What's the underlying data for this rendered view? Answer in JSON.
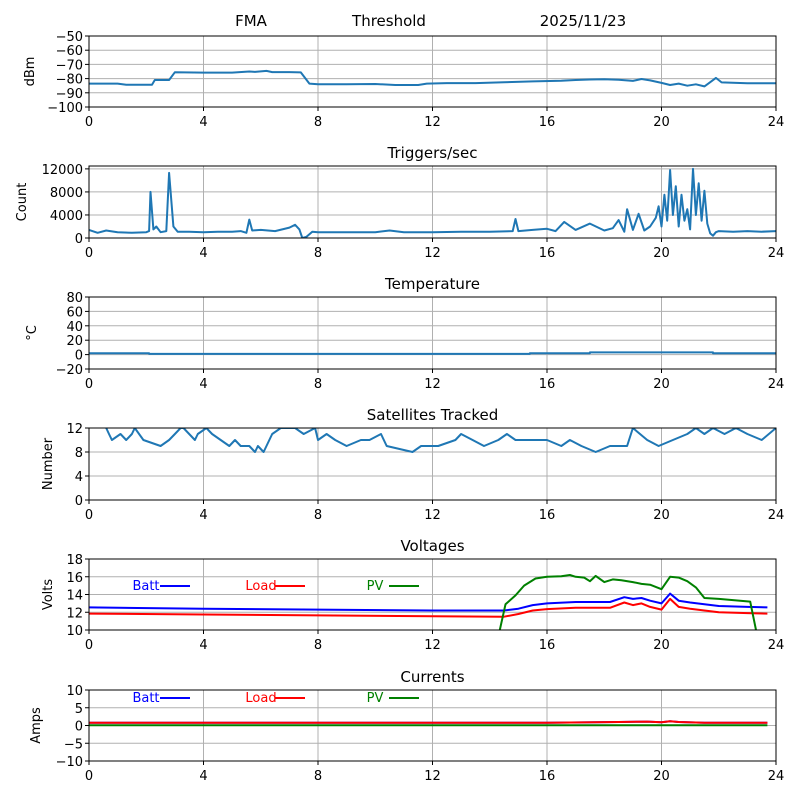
{
  "header": {
    "label_site": "FMA",
    "label_mode": "Threshold",
    "label_date": "2025/11/23"
  },
  "colors": {
    "series_default": "#1f77b4",
    "batt": "#0000ff",
    "load": "#ff0000",
    "pv": "#008000",
    "grid": "#b0b0b0"
  },
  "chart_data": [
    {
      "id": "threshold",
      "type": "line",
      "title": "",
      "xlabel": "",
      "ylabel": "dBm",
      "xlim": [
        0,
        24
      ],
      "ylim": [
        -100,
        -50
      ],
      "xticks": [
        0,
        4,
        8,
        12,
        16,
        20,
        24
      ],
      "yticks": [
        -100,
        -90,
        -80,
        -70,
        -60,
        -50
      ],
      "ytick_labels": [
        "−100",
        "−90",
        "−80",
        "−70",
        "−60",
        "−50"
      ],
      "grid": true,
      "series": [
        {
          "name": "Threshold",
          "color": "#1f77b4",
          "x": [
            0,
            1.0,
            1.3,
            2.2,
            2.3,
            2.8,
            3.0,
            4.0,
            5.0,
            5.6,
            5.8,
            6.2,
            6.4,
            7.0,
            7.4,
            7.7,
            8.0,
            9.0,
            10.0,
            10.7,
            11.5,
            11.8,
            12.5,
            13.5,
            14.5,
            15.5,
            16.5,
            17.0,
            17.5,
            18.0,
            18.5,
            19.0,
            19.3,
            19.6,
            20.0,
            20.3,
            20.6,
            20.9,
            21.2,
            21.5,
            21.7,
            21.9,
            22.1,
            23.0,
            24
          ],
          "y": [
            -83.5,
            -83.5,
            -84.3,
            -84.3,
            -81,
            -81,
            -75.5,
            -75.8,
            -75.8,
            -75,
            -75.3,
            -74.6,
            -75.4,
            -75.4,
            -75.6,
            -83.5,
            -84,
            -84,
            -83.8,
            -84.5,
            -84.5,
            -83.5,
            -83.2,
            -83.2,
            -82.6,
            -82,
            -81.5,
            -81,
            -80.6,
            -80.5,
            -80.8,
            -81.6,
            -80.3,
            -81.3,
            -83,
            -84.5,
            -83.5,
            -85,
            -84,
            -85.5,
            -82.5,
            -79.5,
            -82.7,
            -83.3,
            -83.3
          ]
        }
      ]
    },
    {
      "id": "triggers",
      "type": "line",
      "title": "Triggers/sec",
      "xlabel": "",
      "ylabel": "Count",
      "xlim": [
        0,
        24
      ],
      "ylim": [
        0,
        12500
      ],
      "xticks": [
        0,
        4,
        8,
        12,
        16,
        20,
        24
      ],
      "yticks": [
        0,
        4000,
        8000,
        12000
      ],
      "ytick_labels": [
        "0",
        "4000",
        "8000",
        "12000"
      ],
      "grid": true,
      "series": [
        {
          "name": "Triggers",
          "color": "#1f77b4",
          "x": [
            0,
            0.3,
            0.6,
            1.0,
            1.5,
            2.0,
            2.1,
            2.15,
            2.25,
            2.35,
            2.5,
            2.7,
            2.8,
            2.95,
            3.1,
            3.5,
            4.0,
            4.5,
            5.0,
            5.3,
            5.5,
            5.6,
            5.7,
            6.0,
            6.5,
            7.0,
            7.2,
            7.35,
            7.45,
            7.6,
            7.8,
            8.0,
            9.0,
            10.0,
            10.5,
            11.0,
            12.0,
            13.0,
            14.0,
            14.8,
            14.9,
            15.0,
            15.5,
            16.0,
            16.3,
            16.6,
            17.0,
            17.5,
            18.0,
            18.3,
            18.5,
            18.7,
            18.8,
            19.0,
            19.2,
            19.4,
            19.6,
            19.8,
            19.9,
            20.0,
            20.1,
            20.2,
            20.3,
            20.4,
            20.5,
            20.6,
            20.7,
            20.8,
            20.9,
            21.0,
            21.1,
            21.2,
            21.3,
            21.4,
            21.5,
            21.6,
            21.7,
            21.8,
            21.9,
            22.0,
            22.5,
            23.0,
            23.5,
            24
          ],
          "y": [
            1400,
            900,
            1300,
            1000,
            900,
            1000,
            1200,
            8000,
            1500,
            2000,
            1000,
            1200,
            11300,
            2000,
            1100,
            1100,
            1000,
            1100,
            1100,
            1200,
            900,
            3200,
            1300,
            1400,
            1200,
            1800,
            2300,
            1500,
            0,
            200,
            1100,
            1000,
            1000,
            1000,
            1300,
            1000,
            1000,
            1100,
            1100,
            1200,
            3300,
            1200,
            1400,
            1600,
            1200,
            2800,
            1400,
            2500,
            1300,
            1700,
            3100,
            1100,
            5000,
            1400,
            4200,
            1300,
            2000,
            3500,
            5500,
            2000,
            7500,
            3000,
            11800,
            4000,
            9000,
            2000,
            7500,
            3000,
            5000,
            1500,
            12000,
            4000,
            9500,
            3000,
            8200,
            2500,
            800,
            400,
            1000,
            1200,
            1100,
            1200,
            1100,
            1200
          ]
        }
      ]
    },
    {
      "id": "temperature",
      "type": "line",
      "title": "Temperature",
      "xlabel": "",
      "ylabel": "°C",
      "xlim": [
        0,
        24
      ],
      "ylim": [
        -20,
        80
      ],
      "xticks": [
        0,
        4,
        8,
        12,
        16,
        20,
        24
      ],
      "yticks": [
        -20,
        0,
        20,
        40,
        60,
        80
      ],
      "ytick_labels": [
        "−20",
        "0",
        "20",
        "40",
        "60",
        "80"
      ],
      "grid": true,
      "series": [
        {
          "name": "Temperature",
          "color": "#1f77b4",
          "x": [
            0,
            2.1,
            2.1,
            15.4,
            15.4,
            17.5,
            17.5,
            21.8,
            21.8,
            24
          ],
          "y": [
            2,
            2,
            1,
            1,
            2,
            2,
            3,
            3,
            2,
            2
          ]
        }
      ]
    },
    {
      "id": "satellites",
      "type": "line",
      "title": "Satellites Tracked",
      "xlabel": "",
      "ylabel": "Number",
      "xlim": [
        0,
        24
      ],
      "ylim": [
        0,
        12
      ],
      "xticks": [
        0,
        4,
        8,
        12,
        16,
        20,
        24
      ],
      "yticks": [
        0,
        4,
        8,
        12
      ],
      "ytick_labels": [
        "0",
        "4",
        "8",
        "12"
      ],
      "grid": true,
      "series": [
        {
          "name": "Satellites",
          "color": "#1f77b4",
          "x": [
            0.6,
            0.7,
            0.8,
            1.1,
            1.3,
            1.5,
            1.6,
            1.9,
            2.5,
            2.8,
            3.0,
            3.2,
            3.3,
            3.7,
            3.8,
            4.1,
            4.3,
            4.6,
            4.9,
            5.1,
            5.3,
            5.6,
            5.8,
            5.9,
            6.1,
            6.4,
            6.7,
            7.2,
            7.5,
            7.9,
            8.0,
            8.3,
            8.6,
            9.0,
            9.5,
            9.8,
            10.2,
            10.4,
            11.3,
            11.6,
            12.2,
            12.8,
            13.0,
            13.4,
            13.8,
            14.3,
            14.6,
            14.9,
            16.0,
            16.5,
            16.8,
            17.2,
            17.7,
            18.2,
            18.8,
            19.0,
            19.5,
            19.9,
            20.4,
            20.9,
            21.2,
            21.5,
            21.8,
            22.2,
            22.6,
            23.0,
            23.5,
            24
          ],
          "y": [
            12,
            11,
            10,
            11,
            10,
            11,
            12,
            10,
            9,
            10,
            11,
            12,
            12,
            10,
            11,
            12,
            11,
            10,
            9,
            10,
            9,
            9,
            8,
            9,
            8,
            11,
            12,
            12,
            11,
            12,
            10,
            11,
            10,
            9,
            10,
            10,
            11,
            9,
            8,
            9,
            9,
            10,
            11,
            10,
            9,
            10,
            11,
            10,
            10,
            9,
            10,
            9,
            8,
            9,
            9,
            12,
            10,
            9,
            10,
            11,
            12,
            11,
            12,
            11,
            12,
            11,
            10,
            12
          ]
        }
      ]
    },
    {
      "id": "voltages",
      "type": "line",
      "title": "Voltages",
      "xlabel": "",
      "ylabel": "Volts",
      "xlim": [
        0,
        24
      ],
      "ylim": [
        10,
        18
      ],
      "xticks": [
        0,
        4,
        8,
        12,
        16,
        20,
        24
      ],
      "yticks": [
        10,
        12,
        14,
        16,
        18
      ],
      "ytick_labels": [
        "10",
        "12",
        "14",
        "16",
        "18"
      ],
      "grid": true,
      "legend": {
        "placement": "top-left",
        "entries": [
          "Batt",
          "Load",
          "PV"
        ]
      },
      "series": [
        {
          "name": "Batt",
          "color": "#0000ff",
          "x": [
            0,
            4,
            8,
            12,
            14.5,
            15.0,
            15.5,
            16.0,
            17.0,
            18.2,
            18.7,
            19.0,
            19.3,
            19.6,
            20.0,
            20.3,
            20.6,
            21.0,
            21.5,
            22.0,
            23.0,
            23.7
          ],
          "y": [
            12.55,
            12.4,
            12.3,
            12.2,
            12.2,
            12.4,
            12.8,
            13.0,
            13.15,
            13.15,
            13.7,
            13.5,
            13.6,
            13.3,
            13.0,
            14.1,
            13.3,
            13.1,
            12.9,
            12.7,
            12.6,
            12.55
          ]
        },
        {
          "name": "Load",
          "color": "#ff0000",
          "x": [
            0,
            4,
            8,
            12,
            14.5,
            15.0,
            15.5,
            16.0,
            17.0,
            18.2,
            18.7,
            19.0,
            19.3,
            19.6,
            20.0,
            20.3,
            20.6,
            21.0,
            21.5,
            22.0,
            23.0,
            23.7
          ],
          "y": [
            11.85,
            11.75,
            11.65,
            11.55,
            11.5,
            11.8,
            12.2,
            12.35,
            12.5,
            12.5,
            13.1,
            12.8,
            13.0,
            12.6,
            12.3,
            13.5,
            12.6,
            12.4,
            12.2,
            12.0,
            11.9,
            11.85
          ]
        },
        {
          "name": "PV",
          "color": "#008000",
          "x": [
            14.35,
            14.55,
            14.9,
            15.2,
            15.6,
            16.0,
            16.5,
            16.8,
            17.0,
            17.3,
            17.5,
            17.7,
            18.0,
            18.3,
            18.6,
            19.0,
            19.3,
            19.6,
            20.0,
            20.3,
            20.6,
            20.9,
            21.2,
            21.5,
            22.0,
            23.1,
            23.3
          ],
          "y": [
            10,
            12.9,
            13.9,
            15.0,
            15.8,
            16.0,
            16.05,
            16.2,
            16.0,
            15.9,
            15.5,
            16.1,
            15.4,
            15.7,
            15.6,
            15.4,
            15.2,
            15.1,
            14.6,
            16.0,
            15.9,
            15.5,
            14.8,
            13.6,
            13.5,
            13.2,
            10
          ]
        }
      ]
    },
    {
      "id": "currents",
      "type": "line",
      "title": "Currents",
      "xlabel": "",
      "ylabel": "Amps",
      "xlim": [
        0,
        24
      ],
      "ylim": [
        -10,
        10
      ],
      "xticks": [
        0,
        4,
        8,
        12,
        16,
        20,
        24
      ],
      "yticks": [
        -10,
        -5,
        0,
        5,
        10
      ],
      "ytick_labels": [
        "−10",
        "−5",
        "0",
        "5",
        "10"
      ],
      "grid": true,
      "legend": {
        "placement": "top-left",
        "entries": [
          "Batt",
          "Load",
          "PV"
        ]
      },
      "series": [
        {
          "name": "Batt",
          "color": "#0000ff",
          "x": [
            0,
            16,
            18.5,
            19.5,
            20.0,
            20.3,
            20.6,
            21.5,
            23.7
          ],
          "y": [
            0.8,
            0.8,
            1.0,
            1.1,
            0.9,
            1.2,
            1.0,
            0.8,
            0.8
          ]
        },
        {
          "name": "Load",
          "color": "#ff0000",
          "x": [
            0,
            16,
            18.5,
            19.5,
            20.0,
            20.3,
            20.6,
            21.5,
            23.7
          ],
          "y": [
            0.8,
            0.8,
            1.0,
            1.1,
            0.9,
            1.2,
            1.0,
            0.8,
            0.8
          ]
        },
        {
          "name": "PV",
          "color": "#008000",
          "x": [
            0,
            23.7
          ],
          "y": [
            0.05,
            0.05
          ]
        }
      ]
    }
  ]
}
